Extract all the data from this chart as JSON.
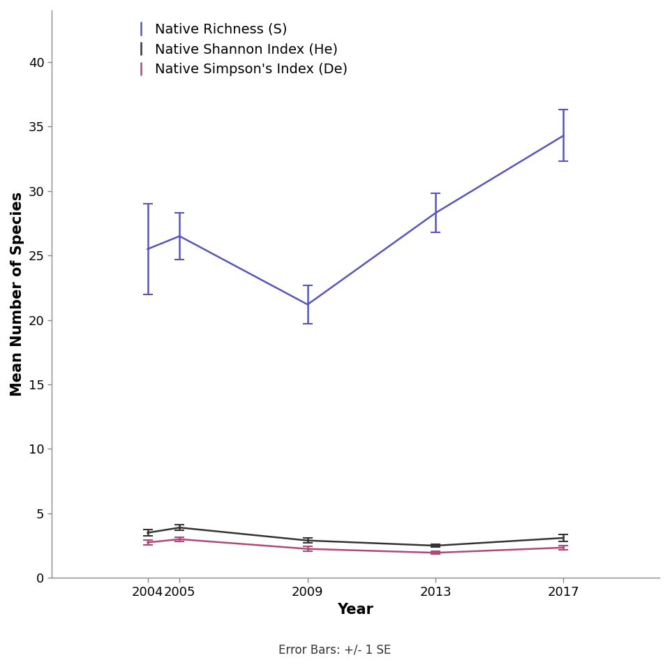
{
  "years": [
    2004,
    2005,
    2009,
    2013,
    2017
  ],
  "richness_mean": [
    25.5,
    26.5,
    21.2,
    28.3,
    34.3
  ],
  "richness_se": [
    3.5,
    1.8,
    1.5,
    1.5,
    2.0
  ],
  "shannon_mean": [
    3.5,
    3.9,
    2.9,
    2.5,
    3.1
  ],
  "shannon_se": [
    0.25,
    0.22,
    0.18,
    0.12,
    0.28
  ],
  "simpson_mean": [
    2.75,
    3.0,
    2.25,
    1.95,
    2.35
  ],
  "simpson_se": [
    0.18,
    0.18,
    0.18,
    0.1,
    0.18
  ],
  "richness_color": "#5555bb",
  "shannon_color": "#333333",
  "simpson_color": "#b04878",
  "ylabel": "Mean Number of Species",
  "xlabel": "Year",
  "ylim": [
    0,
    44
  ],
  "yticks": [
    0,
    5,
    10,
    15,
    20,
    25,
    30,
    35,
    40
  ],
  "legend_labels": [
    "Native Richness (S)",
    "Native Shannon Index (He)",
    "Native Simpson's Index (De)"
  ],
  "footnote": "Error Bars: +/- 1 SE",
  "bg_color": "#ffffff",
  "capsize": 5,
  "capthick": 1.5,
  "linewidth": 1.8,
  "tick_fontsize": 13,
  "label_fontsize": 15,
  "legend_fontsize": 14
}
